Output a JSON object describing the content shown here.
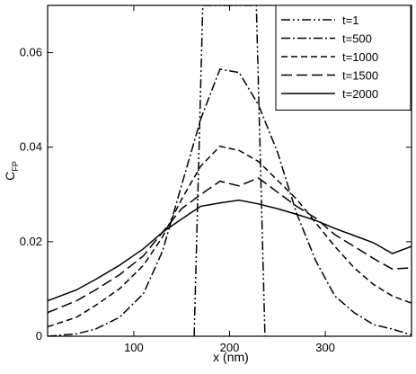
{
  "chart_data": {
    "type": "line",
    "xlabel": "x (nm)",
    "ylabel": "C",
    "ylabel_sub": "FP",
    "xlim": [
      10,
      390
    ],
    "ylim": [
      0,
      0.07
    ],
    "x_ticks": [
      100,
      200,
      300
    ],
    "y_ticks": [
      0,
      0.02,
      0.04,
      0.06
    ],
    "x_tick_labels": [
      "100",
      "200",
      "300"
    ],
    "y_tick_labels": [
      "0",
      "0.02",
      "0.04",
      "0.06"
    ],
    "grid": false,
    "legend_position": "top-right",
    "series": [
      {
        "name": "t=1",
        "style": "dash-dot-dot",
        "x": [
          163,
          172,
          228,
          237
        ],
        "y": [
          0,
          0.07,
          0.07,
          0
        ]
      },
      {
        "name": "t=500",
        "style": "dash-dot",
        "x": [
          10,
          40,
          60,
          85,
          110,
          130,
          150,
          170,
          190,
          210,
          230,
          250,
          270,
          290,
          310,
          330,
          350,
          370,
          390
        ],
        "y": [
          0,
          0.0005,
          0.0015,
          0.004,
          0.009,
          0.018,
          0.032,
          0.046,
          0.0565,
          0.0558,
          0.049,
          0.039,
          0.026,
          0.016,
          0.0085,
          0.005,
          0.0025,
          0.0015,
          0.0003
        ]
      },
      {
        "name": "t=1000",
        "style": "short-dash",
        "x": [
          10,
          40,
          60,
          85,
          110,
          130,
          150,
          170,
          190,
          210,
          230,
          250,
          270,
          290,
          310,
          330,
          350,
          370,
          390
        ],
        "y": [
          0.002,
          0.004,
          0.0065,
          0.01,
          0.015,
          0.021,
          0.029,
          0.036,
          0.0402,
          0.0393,
          0.037,
          0.033,
          0.029,
          0.024,
          0.019,
          0.0145,
          0.011,
          0.0085,
          0.007
        ]
      },
      {
        "name": "t=1500",
        "style": "long-dash",
        "x": [
          10,
          40,
          60,
          85,
          110,
          130,
          150,
          170,
          190,
          210,
          230,
          250,
          270,
          290,
          310,
          330,
          350,
          370,
          390
        ],
        "y": [
          0.005,
          0.0075,
          0.0098,
          0.013,
          0.017,
          0.022,
          0.027,
          0.03,
          0.0328,
          0.0318,
          0.0335,
          0.0305,
          0.0275,
          0.025,
          0.0215,
          0.019,
          0.0165,
          0.0142,
          0.0145
        ]
      },
      {
        "name": "t=2000",
        "style": "solid",
        "x": [
          10,
          40,
          60,
          85,
          110,
          130,
          150,
          170,
          190,
          210,
          230,
          250,
          270,
          290,
          310,
          330,
          350,
          370,
          390
        ],
        "y": [
          0.0075,
          0.0098,
          0.012,
          0.015,
          0.0185,
          0.022,
          0.0248,
          0.0275,
          0.0282,
          0.0288,
          0.028,
          0.027,
          0.0258,
          0.0245,
          0.0228,
          0.0213,
          0.0198,
          0.0175,
          0.019
        ]
      }
    ]
  }
}
